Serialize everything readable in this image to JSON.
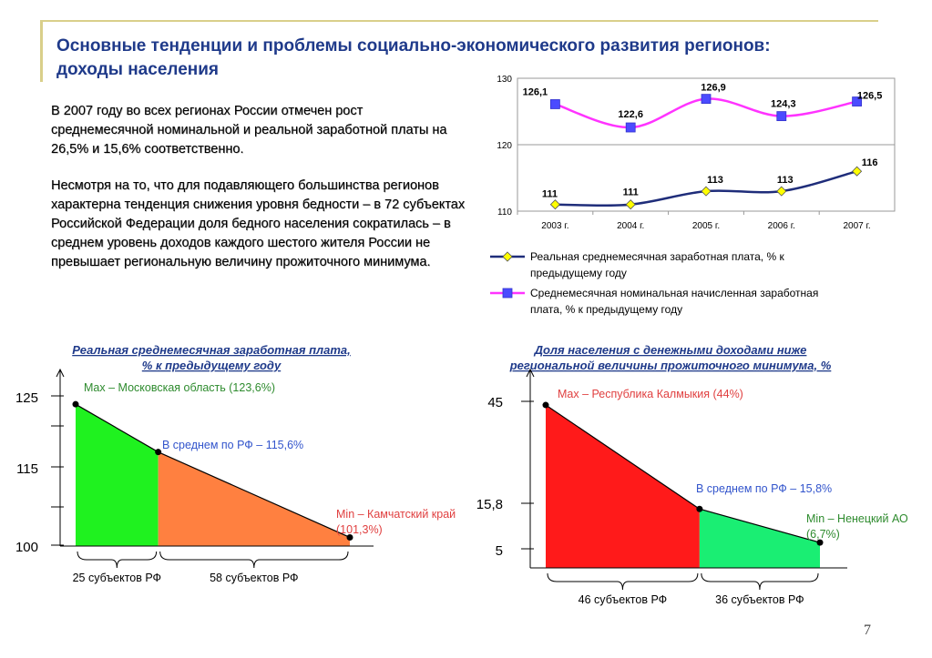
{
  "header": {
    "title_line1": "Основные тенденции и проблемы социально-экономического развития регионов:",
    "title_line2": "доходы населения"
  },
  "body_text": {
    "para1": "В 2007 году во всех регионах России отмечен рост среднемесячной номинальной и реальной заработной платы на 26,5% и 15,6% соответственно.",
    "para2": "Несмотря на то, что для подавляющего большинства регионов характерна тенденция снижения уровня бедности – в 72 субъектах Российской Федерации доля бедного населения сократилась – в среднем уровень доходов каждого шестого жителя России не превышает региональную величину прожиточного минимума."
  },
  "page_number": "7",
  "chart_data": [
    {
      "type": "line",
      "categories": [
        "2003 г.",
        "2004 г.",
        "2005 г.",
        "2006 г.",
        "2007 г."
      ],
      "ylim": [
        110,
        130
      ],
      "yticks": [
        "110",
        "120",
        "130"
      ],
      "grid": true,
      "legend_position": "bottom",
      "series": [
        {
          "name": "Реальная среднемесячная заработная плата, % к предыдущему году",
          "name_line1": "Реальная среднемесячная заработная плата, % к",
          "name_line2": "предыдущему году",
          "values": [
            111,
            111,
            113,
            113,
            116
          ],
          "labels": [
            "111",
            "111",
            "113",
            "113",
            "116"
          ],
          "color": "#1f2d7a",
          "marker_color": "#ffff00"
        },
        {
          "name": "Среднемесячная номинальная начисленная заработная плата, % к предыдущему году",
          "name_line1": "Среднемесячная номинальная начисленная заработная",
          "name_line2": "плата, % к предыдущему году",
          "values": [
            126.1,
            122.6,
            126.9,
            124.3,
            126.5
          ],
          "labels": [
            "126,1",
            "122,6",
            "126,9",
            "124,3",
            "126,5"
          ],
          "color": "#ff33ff",
          "marker_color": "#4b4bff"
        }
      ]
    },
    {
      "type": "area",
      "title_line1": "Реальная среднемесячная заработная плата,",
      "title_line2": "% к предыдущему году",
      "y_tick_labels": [
        "125",
        "115",
        "100"
      ],
      "points": [
        {
          "subjects": 0,
          "value": 123.6
        },
        {
          "subjects": 25,
          "value": 115.6
        },
        {
          "subjects": 83,
          "value": 101.3
        }
      ],
      "segments": [
        {
          "label": "25 субъектов РФ",
          "color": "#1ff21f"
        },
        {
          "label": "58 субъектов РФ",
          "color": "#ff8040"
        }
      ],
      "annotations": [
        {
          "text": "Max – Московская область (123,6%)",
          "color": "#2e8b2e"
        },
        {
          "text": "В среднем по РФ – 115,6%",
          "color": "#3355cc"
        },
        {
          "text_line1": "Min – Камчатский край",
          "text_line2": "(101,3%)",
          "color": "#e04040"
        }
      ]
    },
    {
      "type": "area",
      "title_line1": "Доля населения с денежными доходами ниже",
      "title_line2": "региональной величины прожиточного минимума, %",
      "y_tick_labels": [
        "45",
        "15,8",
        "5"
      ],
      "points": [
        {
          "subjects": 0,
          "value": 44
        },
        {
          "subjects": 46,
          "value": 15.8
        },
        {
          "subjects": 82,
          "value": 6.7
        }
      ],
      "segments": [
        {
          "label": "46 субъектов РФ",
          "color": "#ff1a1a"
        },
        {
          "label": "36 субъектов РФ",
          "color": "#1aee73"
        }
      ],
      "annotations": [
        {
          "text": "Max – Республика Калмыкия (44%)",
          "color": "#e04040"
        },
        {
          "text": "В среднем по РФ – 15,8%",
          "color": "#3355cc"
        },
        {
          "text_line1": "Min – Ненецкий АО",
          "text_line2": "(6,7%)",
          "color": "#2e8b2e"
        }
      ]
    }
  ]
}
